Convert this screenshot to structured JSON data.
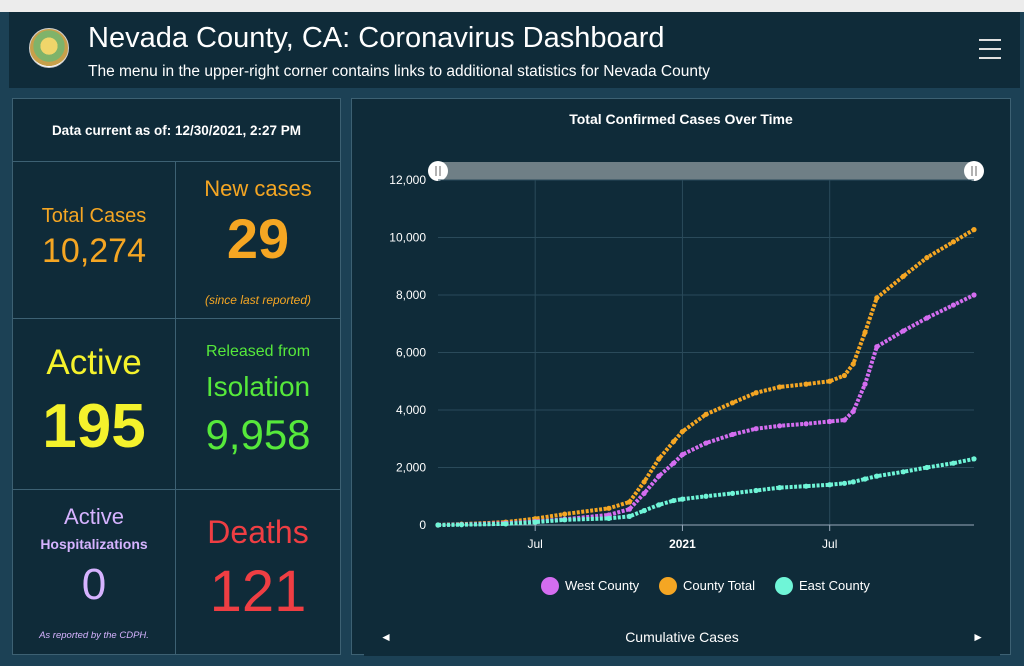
{
  "header": {
    "title": "Nevada County, CA: Coronavirus Dashboard",
    "subtitle": "The menu in the upper-right corner contains links to additional statistics for Nevada County"
  },
  "stats": {
    "data_current": "Data current as of: 12/30/2021, 2:27 PM",
    "total_label": "Total Cases",
    "total_value": "10,274",
    "new_label": "New cases",
    "new_value": "29",
    "new_note": "(since last reported)",
    "active_label": "Active",
    "active_value": "195",
    "released_label1": "Released from",
    "released_label2": "Isolation",
    "released_value": "9,958",
    "hosp_label1": "Active",
    "hosp_label2": "Hospitalizations",
    "hosp_value": "0",
    "hosp_note": "As reported by the CDPH.",
    "deaths_label": "Deaths",
    "deaths_value": "121"
  },
  "colors": {
    "orange": "#f5a623",
    "yellow": "#f4f22c",
    "green": "#56e93b",
    "lavender": "#d6b3ff",
    "red": "#ef3e43",
    "west": "#d46df0",
    "east": "#6ff5d7",
    "total": "#f5a623"
  },
  "footer": {
    "label": "Cumulative Cases",
    "prev_icon": "◄",
    "next_icon": "►"
  },
  "chart_data": {
    "type": "line",
    "title": "Total Confirmed Cases Over Time",
    "xlabel": "",
    "ylabel": "",
    "ylim": [
      0,
      12000
    ],
    "yticks": [
      0,
      2000,
      4000,
      6000,
      8000,
      10000,
      12000
    ],
    "ytick_labels": [
      "0",
      "2,000",
      "4,000",
      "6,000",
      "8,000",
      "10,000",
      "12,000"
    ],
    "xlim": [
      2020.17,
      2021.99
    ],
    "xticks": [
      2020.5,
      2021.0,
      2021.5
    ],
    "xtick_labels": [
      "Jul",
      "2021",
      "Jul"
    ],
    "legend": "bottom",
    "series": [
      {
        "name": "West County",
        "color": "#d46df0",
        "x": [
          2020.17,
          2020.25,
          2020.4,
          2020.5,
          2020.6,
          2020.75,
          2020.82,
          2020.87,
          2020.92,
          2020.97,
          2021.0,
          2021.08,
          2021.17,
          2021.25,
          2021.33,
          2021.42,
          2021.5,
          2021.55,
          2021.58,
          2021.62,
          2021.66,
          2021.75,
          2021.83,
          2021.92,
          2021.99
        ],
        "y": [
          0,
          20,
          60,
          120,
          200,
          350,
          550,
          1100,
          1700,
          2150,
          2450,
          2850,
          3150,
          3350,
          3450,
          3520,
          3600,
          3650,
          3950,
          4900,
          6200,
          6750,
          7200,
          7650,
          8000
        ]
      },
      {
        "name": "County Total",
        "color": "#f5a623",
        "x": [
          2020.17,
          2020.25,
          2020.4,
          2020.5,
          2020.6,
          2020.75,
          2020.82,
          2020.87,
          2020.92,
          2020.97,
          2021.0,
          2021.08,
          2021.17,
          2021.25,
          2021.33,
          2021.42,
          2021.5,
          2021.55,
          2021.58,
          2021.62,
          2021.66,
          2021.75,
          2021.83,
          2021.92,
          2021.99
        ],
        "y": [
          0,
          30,
          100,
          220,
          380,
          580,
          800,
          1500,
          2300,
          2900,
          3250,
          3850,
          4250,
          4600,
          4800,
          4900,
          5000,
          5200,
          5600,
          6700,
          7900,
          8650,
          9300,
          9850,
          10274
        ]
      },
      {
        "name": "East County",
        "color": "#6ff5d7",
        "x": [
          2020.17,
          2020.25,
          2020.4,
          2020.5,
          2020.6,
          2020.75,
          2020.82,
          2020.87,
          2020.92,
          2020.97,
          2021.0,
          2021.08,
          2021.17,
          2021.25,
          2021.33,
          2021.42,
          2021.5,
          2021.55,
          2021.58,
          2021.62,
          2021.66,
          2021.75,
          2021.83,
          2021.92,
          2021.99
        ],
        "y": [
          0,
          10,
          40,
          100,
          180,
          230,
          300,
          500,
          700,
          850,
          900,
          1000,
          1100,
          1200,
          1300,
          1350,
          1400,
          1450,
          1500,
          1600,
          1700,
          1850,
          2000,
          2150,
          2300
        ]
      }
    ]
  }
}
